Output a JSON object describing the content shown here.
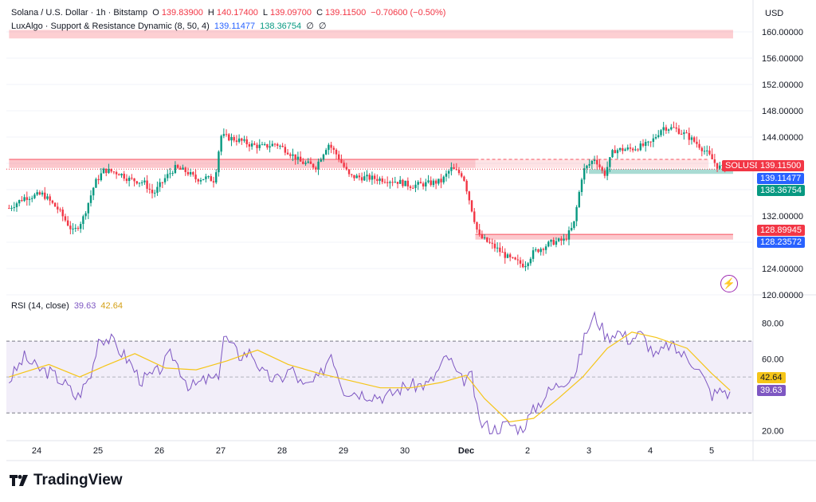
{
  "header": {
    "symbol": "Solana / U.S. Dollar · 1h · Bitstamp",
    "o_label": "O",
    "o": "139.83900",
    "h_label": "H",
    "h": "140.17400",
    "l_label": "L",
    "l": "139.09700",
    "c_label": "C",
    "c": "139.11500",
    "change": "−0.70600 (−0.50%)",
    "indicator": "LuxAlgo · Support & Resistance Dynamic (8, 50, 4)",
    "ind_v1": "139.11477",
    "ind_v2": "138.36754",
    "ind_v3": "∅",
    "ind_v4": "∅",
    "rsi_label": "RSI (14, close)",
    "rsi_v1": "39.63",
    "rsi_v2": "42.64"
  },
  "currency": "USD",
  "brand": "TradingView",
  "tags": {
    "solusd_label": "SOLUSD",
    "solusd": "139.11500",
    "sr1": "139.11477",
    "sr2": "138.36754",
    "sr3": "128.89945",
    "sr4": "128.23572",
    "rsi1": "42.64",
    "rsi2": "39.63"
  },
  "colors": {
    "up": "#089981",
    "down": "#f23645",
    "rsi": "#7e57c2",
    "rsi_ma": "#f5c518",
    "resistance": "#f7525f",
    "support": "#089981",
    "blue_tag": "#2962ff"
  },
  "chart_data": [
    {
      "type": "candlestick",
      "title": "Solana / U.S. Dollar · 1h · Bitstamp",
      "ylabel": "USD",
      "ylim": [
        120,
        160
      ],
      "yticks": [
        "160.00000",
        "156.00000",
        "152.00000",
        "148.00000",
        "144.00000",
        "140.00000",
        "136.00000",
        "132.00000",
        "128.00000",
        "124.00000",
        "120.00000"
      ],
      "xticks": [
        "24",
        "25",
        "26",
        "27",
        "28",
        "29",
        "30",
        "Dec",
        "2",
        "3",
        "4",
        "5"
      ],
      "x_positions": [
        0,
        1,
        2,
        3,
        4,
        5,
        6,
        7,
        8,
        9,
        10,
        11
      ],
      "path": [
        [
          -0.45,
          133.2
        ],
        [
          -0.2,
          134.8
        ],
        [
          0.1,
          135.3
        ],
        [
          0.35,
          133.0
        ],
        [
          0.6,
          129.5
        ],
        [
          0.75,
          131.5
        ],
        [
          0.95,
          137.0
        ],
        [
          1.1,
          139.0
        ],
        [
          1.35,
          138.5
        ],
        [
          1.5,
          137.6
        ],
        [
          1.75,
          137.1
        ],
        [
          1.9,
          135.3
        ],
        [
          2.1,
          137.8
        ],
        [
          2.25,
          139.3
        ],
        [
          2.45,
          138.7
        ],
        [
          2.6,
          137.6
        ],
        [
          2.75,
          137.8
        ],
        [
          2.9,
          137.4
        ],
        [
          3.0,
          144.2
        ],
        [
          3.3,
          143.5
        ],
        [
          3.5,
          142.8
        ],
        [
          3.7,
          142.5
        ],
        [
          3.9,
          143.0
        ],
        [
          4.1,
          141.8
        ],
        [
          4.3,
          140.2
        ],
        [
          4.55,
          139.5
        ],
        [
          4.75,
          143.0
        ],
        [
          4.9,
          141.2
        ],
        [
          5.1,
          138.0
        ],
        [
          5.4,
          137.8
        ],
        [
          5.7,
          137.5
        ],
        [
          5.9,
          137.2
        ],
        [
          6.1,
          136.6
        ],
        [
          6.35,
          136.9
        ],
        [
          6.6,
          137.3
        ],
        [
          6.75,
          139.2
        ],
        [
          6.95,
          138.2
        ],
        [
          7.2,
          129.0
        ],
        [
          7.5,
          127.0
        ],
        [
          7.7,
          125.5
        ],
        [
          7.95,
          124.5
        ],
        [
          8.1,
          126.5
        ],
        [
          8.4,
          128.0
        ],
        [
          8.6,
          128.3
        ],
        [
          8.75,
          130.5
        ],
        [
          8.9,
          138.8
        ],
        [
          9.1,
          140.8
        ],
        [
          9.25,
          138.2
        ],
        [
          9.4,
          142.0
        ],
        [
          9.7,
          142.2
        ],
        [
          10.0,
          143.0
        ],
        [
          10.2,
          145.5
        ],
        [
          10.4,
          145.3
        ],
        [
          10.6,
          144.2
        ],
        [
          10.8,
          142.7
        ],
        [
          10.95,
          141.3
        ],
        [
          11.1,
          139.5
        ],
        [
          11.25,
          139.1
        ]
      ],
      "resistance_zones": [
        {
          "x0": -0.45,
          "x1": 7.15,
          "y0": 140.6,
          "y1": 139.3
        },
        {
          "x0": 7.15,
          "x1": 10.95,
          "y0": 140.6,
          "y1": 139.3,
          "style": "dashed"
        },
        {
          "x0": 7.15,
          "x1": 11.35,
          "y0": 129.2,
          "y1": 128.4
        }
      ],
      "resistance_top": {
        "x0": -0.45,
        "x1": 11.35,
        "y0": 160.3,
        "y1": 159.0
      },
      "support_zone": {
        "x0": 9.0,
        "x1": 11.35,
        "y0": 139.1,
        "y1": 138.4
      },
      "last_price": 139.115
    },
    {
      "type": "line",
      "title": "RSI (14, close)",
      "ylim": [
        15,
        90
      ],
      "yticks": [
        "80.00",
        "60.00",
        "20.00"
      ],
      "band": [
        30,
        70
      ],
      "midline": 50,
      "series": [
        {
          "name": "",
          "path": [
            [
              -0.45,
              48
            ],
            [
              -0.2,
              61
            ],
            [
              0.0,
              55
            ],
            [
              0.25,
              52
            ],
            [
              0.5,
              45
            ],
            [
              0.65,
              38
            ],
            [
              0.9,
              52
            ],
            [
              1.0,
              72
            ],
            [
              1.2,
              71
            ],
            [
              1.5,
              59
            ],
            [
              1.7,
              48
            ],
            [
              1.95,
              52
            ],
            [
              2.2,
              63
            ],
            [
              2.5,
              44
            ],
            [
              2.8,
              49
            ],
            [
              2.95,
              48
            ],
            [
              3.05,
              73
            ],
            [
              3.3,
              62
            ],
            [
              3.5,
              64
            ],
            [
              3.7,
              51
            ],
            [
              3.95,
              48
            ],
            [
              4.15,
              55
            ],
            [
              4.35,
              44
            ],
            [
              4.6,
              49
            ],
            [
              4.8,
              64
            ],
            [
              5.0,
              43
            ],
            [
              5.3,
              41
            ],
            [
              5.7,
              39
            ],
            [
              6.0,
              45
            ],
            [
              6.4,
              46
            ],
            [
              6.7,
              62
            ],
            [
              6.9,
              48
            ],
            [
              7.1,
              50
            ],
            [
              7.2,
              25
            ],
            [
              7.45,
              21
            ],
            [
              7.7,
              24
            ],
            [
              7.9,
              21
            ],
            [
              8.15,
              34
            ],
            [
              8.35,
              42
            ],
            [
              8.55,
              47
            ],
            [
              8.8,
              53
            ],
            [
              8.95,
              75
            ],
            [
              9.1,
              84
            ],
            [
              9.3,
              72
            ],
            [
              9.45,
              76
            ],
            [
              9.65,
              71
            ],
            [
              9.85,
              74
            ],
            [
              10.1,
              61
            ],
            [
              10.3,
              68
            ],
            [
              10.55,
              62
            ],
            [
              10.75,
              57
            ],
            [
              11.0,
              40
            ],
            [
              11.2,
              43
            ],
            [
              11.3,
              39.6
            ]
          ]
        },
        {
          "name": "",
          "path": [
            [
              -0.45,
              50
            ],
            [
              0.2,
              57
            ],
            [
              0.7,
              50
            ],
            [
              1.1,
              56
            ],
            [
              1.6,
              63
            ],
            [
              2.1,
              55
            ],
            [
              2.6,
              54
            ],
            [
              3.1,
              59
            ],
            [
              3.6,
              65
            ],
            [
              4.1,
              57
            ],
            [
              4.6,
              52
            ],
            [
              5.1,
              48
            ],
            [
              5.6,
              44
            ],
            [
              6.1,
              44
            ],
            [
              6.6,
              47
            ],
            [
              7.0,
              51
            ],
            [
              7.3,
              38
            ],
            [
              7.7,
              25
            ],
            [
              8.1,
              27
            ],
            [
              8.5,
              38
            ],
            [
              8.9,
              50
            ],
            [
              9.3,
              66
            ],
            [
              9.7,
              75
            ],
            [
              10.1,
              72
            ],
            [
              10.6,
              66
            ],
            [
              11.0,
              52
            ],
            [
              11.3,
              42.6
            ]
          ]
        }
      ]
    }
  ]
}
